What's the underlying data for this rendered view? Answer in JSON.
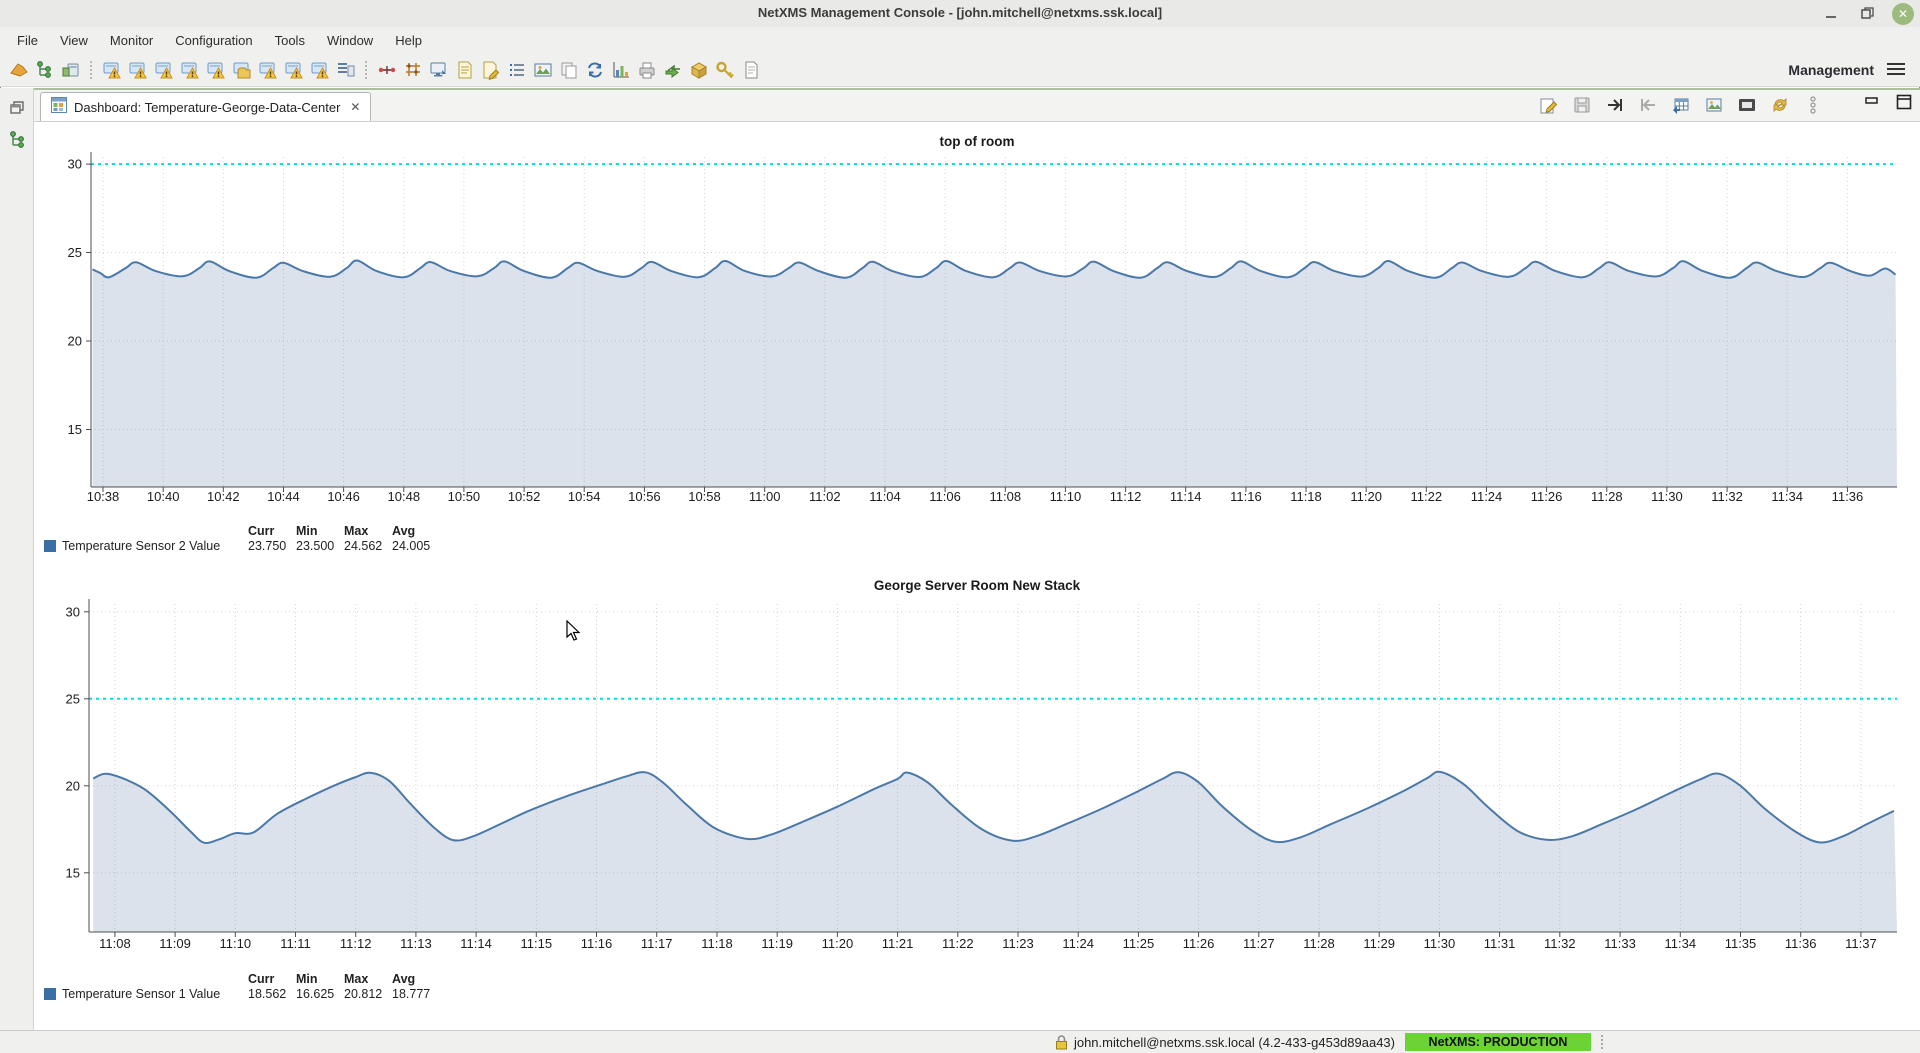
{
  "window": {
    "title": "NetXMS Management Console - [john.mitchell@netxms.ssk.local]",
    "controls": [
      "minimize",
      "restore",
      "close"
    ]
  },
  "menu": {
    "items": [
      "File",
      "View",
      "Monitor",
      "Configuration",
      "Tools",
      "Window",
      "Help"
    ]
  },
  "toolbar": {
    "management_label": "Management",
    "groups": [
      [
        "netxms-logo",
        "object-tree",
        "open-console"
      ],
      [
        "alarm-console",
        "alarm-console",
        "alarm-console",
        "alarm-console",
        "alarm-console",
        "alarm-folder",
        "alarm-console",
        "alarm-console",
        "alarm-console",
        "report"
      ],
      [
        "link-nodes",
        "network-grid",
        "monitor-export",
        "script",
        "script-edit",
        "event-list",
        "image-library",
        "copy",
        "sync",
        "graph",
        "printer",
        "package-deploy",
        "package",
        "key",
        "document"
      ]
    ]
  },
  "leftstrip": {
    "icons": [
      "restore-windows",
      "nav-tree"
    ]
  },
  "tab": {
    "icon": "dashboard",
    "label": "Dashboard: Temperature-George-Data-Center",
    "close": "✕"
  },
  "view_toolbar": {
    "icons": [
      "edit",
      "save",
      "pin-right",
      "pin-left",
      "export-table",
      "screenshot",
      "fullscreen",
      "refresh",
      "handle-dots"
    ],
    "window_icons": [
      "minimize-view",
      "maximize-view"
    ]
  },
  "status_bar": {
    "user": "john.mitchell@netxms.ssk.local (4.2-433-g453d89aa43)",
    "server_badge": "NetXMS: PRODUCTION",
    "badge_color": "#6bd335"
  },
  "chart_data": [
    {
      "type": "area",
      "title": "top of room",
      "xlabel": "",
      "ylabel": "",
      "grid": true,
      "legend_position": "bottom-left",
      "ylim": [
        11.75,
        30.4
      ],
      "y_ticks": [
        15,
        20,
        25,
        30
      ],
      "xlim": [
        -0.4,
        59.65
      ],
      "x_tick_minutes": [
        0,
        2,
        4,
        6,
        8,
        10,
        12,
        14,
        16,
        18,
        20,
        22,
        24,
        26,
        28,
        30,
        32,
        34,
        36,
        38,
        40,
        42,
        44,
        46,
        48,
        50,
        52,
        54,
        56,
        58
      ],
      "x_tick_labels": [
        "10:38",
        "10:40",
        "10:42",
        "10:44",
        "10:46",
        "10:48",
        "10:50",
        "10:52",
        "10:54",
        "10:56",
        "10:58",
        "11:00",
        "11:02",
        "11:04",
        "11:06",
        "11:08",
        "11:10",
        "11:12",
        "11:14",
        "11:16",
        "11:18",
        "11:20",
        "11:22",
        "11:24",
        "11:26",
        "11:28",
        "11:30",
        "11:32",
        "11:34",
        "11:36"
      ],
      "threshold": {
        "value": 30,
        "color": "#00dde2"
      },
      "series": [
        {
          "name": "Temperature Sensor 2 Value",
          "color": "#4a78a8",
          "fill": "rgba(92,124,168,0.22)",
          "points": [
            [
              -0.35,
              24.05
            ],
            [
              -0.1,
              23.85
            ],
            [
              0.2,
              23.6
            ],
            [
              0.75,
              24.12
            ],
            [
              1.1,
              24.45
            ],
            [
              1.75,
              23.95
            ],
            [
              2.65,
              23.66
            ],
            [
              3.2,
              24.12
            ],
            [
              3.55,
              24.5
            ],
            [
              4.2,
              23.95
            ],
            [
              5.1,
              23.58
            ],
            [
              5.65,
              24.12
            ],
            [
              6.0,
              24.42
            ],
            [
              6.65,
              23.95
            ],
            [
              7.55,
              23.63
            ],
            [
              8.1,
              24.12
            ],
            [
              8.45,
              24.55
            ],
            [
              9.1,
              23.95
            ],
            [
              10.0,
              23.6
            ],
            [
              10.55,
              24.12
            ],
            [
              10.9,
              24.46
            ],
            [
              11.55,
              23.95
            ],
            [
              12.45,
              23.66
            ],
            [
              13.0,
              24.12
            ],
            [
              13.35,
              24.5
            ],
            [
              14.0,
              23.95
            ],
            [
              14.9,
              23.58
            ],
            [
              15.45,
              24.12
            ],
            [
              15.8,
              24.42
            ],
            [
              16.45,
              23.95
            ],
            [
              17.35,
              23.63
            ],
            [
              17.9,
              24.12
            ],
            [
              18.25,
              24.47
            ],
            [
              18.9,
              23.95
            ],
            [
              19.8,
              23.6
            ],
            [
              20.35,
              24.12
            ],
            [
              20.7,
              24.52
            ],
            [
              21.35,
              23.95
            ],
            [
              22.25,
              23.65
            ],
            [
              22.8,
              24.12
            ],
            [
              23.15,
              24.44
            ],
            [
              23.8,
              23.95
            ],
            [
              24.7,
              23.58
            ],
            [
              25.25,
              24.12
            ],
            [
              25.6,
              24.48
            ],
            [
              26.25,
              23.95
            ],
            [
              27.15,
              23.62
            ],
            [
              27.7,
              24.12
            ],
            [
              28.05,
              24.52
            ],
            [
              28.7,
              23.95
            ],
            [
              29.6,
              23.6
            ],
            [
              30.15,
              24.12
            ],
            [
              30.5,
              24.44
            ],
            [
              31.15,
              23.95
            ],
            [
              32.05,
              23.65
            ],
            [
              32.6,
              24.12
            ],
            [
              32.95,
              24.49
            ],
            [
              33.6,
              23.95
            ],
            [
              34.5,
              23.58
            ],
            [
              35.05,
              24.12
            ],
            [
              35.4,
              24.45
            ],
            [
              36.05,
              23.95
            ],
            [
              36.95,
              23.62
            ],
            [
              37.5,
              24.12
            ],
            [
              37.85,
              24.5
            ],
            [
              38.5,
              23.95
            ],
            [
              39.4,
              23.6
            ],
            [
              39.95,
              24.12
            ],
            [
              40.3,
              24.46
            ],
            [
              40.95,
              23.95
            ],
            [
              41.85,
              23.64
            ],
            [
              42.4,
              24.12
            ],
            [
              42.75,
              24.52
            ],
            [
              43.4,
              23.95
            ],
            [
              44.3,
              23.58
            ],
            [
              44.85,
              24.12
            ],
            [
              45.2,
              24.44
            ],
            [
              45.85,
              23.95
            ],
            [
              46.75,
              23.63
            ],
            [
              47.3,
              24.12
            ],
            [
              47.65,
              24.48
            ],
            [
              48.3,
              23.95
            ],
            [
              49.2,
              23.6
            ],
            [
              49.75,
              24.12
            ],
            [
              50.1,
              24.45
            ],
            [
              50.75,
              23.95
            ],
            [
              51.65,
              23.65
            ],
            [
              52.2,
              24.12
            ],
            [
              52.55,
              24.51
            ],
            [
              53.2,
              23.95
            ],
            [
              54.1,
              23.58
            ],
            [
              54.65,
              24.12
            ],
            [
              55.0,
              24.44
            ],
            [
              55.65,
              23.95
            ],
            [
              56.55,
              23.62
            ],
            [
              57.1,
              24.12
            ],
            [
              57.45,
              24.42
            ],
            [
              58.1,
              23.95
            ],
            [
              58.75,
              23.7
            ],
            [
              59.25,
              24.1
            ],
            [
              59.6,
              23.75
            ]
          ]
        }
      ],
      "legend": {
        "headers": [
          "Curr",
          "Min",
          "Max",
          "Avg"
        ],
        "rows": [
          {
            "label": "Temperature Sensor 2 Value",
            "color": "#3a6ea5",
            "curr": "23.750",
            "min": "23.500",
            "max": "24.562",
            "avg": "24.005"
          }
        ]
      }
    },
    {
      "type": "area",
      "title": "George Server Room New Stack",
      "xlabel": "",
      "ylabel": "",
      "grid": true,
      "legend_position": "bottom-left",
      "ylim": [
        11.6,
        30.45
      ],
      "y_ticks": [
        15,
        20,
        25,
        30
      ],
      "xlim": [
        -0.43,
        29.6
      ],
      "x_tick_minutes": [
        0,
        1,
        2,
        3,
        4,
        5,
        6,
        7,
        8,
        9,
        10,
        11,
        12,
        13,
        14,
        15,
        16,
        17,
        18,
        19,
        20,
        21,
        22,
        23,
        24,
        25,
        26,
        27,
        28,
        29
      ],
      "x_tick_labels": [
        "11:08",
        "11:09",
        "11:10",
        "11:11",
        "11:12",
        "11:13",
        "11:14",
        "11:15",
        "11:16",
        "11:17",
        "11:18",
        "11:19",
        "11:20",
        "11:21",
        "11:22",
        "11:23",
        "11:24",
        "11:25",
        "11:26",
        "11:27",
        "11:28",
        "11:29",
        "11:30",
        "11:31",
        "11:32",
        "11:33",
        "11:34",
        "11:35",
        "11:36",
        "11:37"
      ],
      "threshold": {
        "value": 25,
        "color": "#00dde2"
      },
      "series": [
        {
          "name": "Temperature Sensor 1 Value",
          "color": "#4a78a8",
          "fill": "rgba(92,124,168,0.22)",
          "points": [
            [
              -0.36,
              20.42
            ],
            [
              -0.1,
              20.68
            ],
            [
              0.45,
              19.9
            ],
            [
              0.9,
              18.6
            ],
            [
              1.25,
              17.4
            ],
            [
              1.48,
              16.73
            ],
            [
              1.75,
              16.95
            ],
            [
              2.0,
              17.28
            ],
            [
              2.3,
              17.32
            ],
            [
              2.7,
              18.4
            ],
            [
              3.2,
              19.3
            ],
            [
              3.7,
              20.1
            ],
            [
              4.0,
              20.5
            ],
            [
              4.24,
              20.75
            ],
            [
              4.55,
              20.3
            ],
            [
              4.9,
              19.0
            ],
            [
              5.3,
              17.6
            ],
            [
              5.62,
              16.88
            ],
            [
              5.95,
              17.1
            ],
            [
              6.4,
              17.8
            ],
            [
              6.9,
              18.6
            ],
            [
              7.5,
              19.4
            ],
            [
              8.1,
              20.1
            ],
            [
              8.5,
              20.55
            ],
            [
              8.81,
              20.78
            ],
            [
              9.1,
              20.2
            ],
            [
              9.5,
              18.9
            ],
            [
              9.95,
              17.6
            ],
            [
              10.5,
              16.95
            ],
            [
              10.9,
              17.2
            ],
            [
              11.4,
              17.9
            ],
            [
              12.0,
              18.8
            ],
            [
              12.6,
              19.8
            ],
            [
              13.0,
              20.4
            ],
            [
              13.16,
              20.76
            ],
            [
              13.5,
              20.2
            ],
            [
              13.9,
              18.9
            ],
            [
              14.4,
              17.5
            ],
            [
              14.9,
              16.85
            ],
            [
              15.3,
              17.1
            ],
            [
              15.8,
              17.8
            ],
            [
              16.4,
              18.7
            ],
            [
              17.0,
              19.7
            ],
            [
              17.4,
              20.4
            ],
            [
              17.67,
              20.78
            ],
            [
              18.0,
              20.2
            ],
            [
              18.4,
              18.8
            ],
            [
              18.9,
              17.4
            ],
            [
              19.29,
              16.78
            ],
            [
              19.7,
              17.05
            ],
            [
              20.2,
              17.8
            ],
            [
              20.8,
              18.7
            ],
            [
              21.4,
              19.7
            ],
            [
              21.8,
              20.45
            ],
            [
              22.01,
              20.8
            ],
            [
              22.4,
              20.1
            ],
            [
              22.8,
              18.8
            ],
            [
              23.3,
              17.4
            ],
            [
              23.78,
              16.9
            ],
            [
              24.2,
              17.1
            ],
            [
              24.7,
              17.8
            ],
            [
              25.3,
              18.7
            ],
            [
              25.9,
              19.7
            ],
            [
              26.35,
              20.4
            ],
            [
              26.64,
              20.7
            ],
            [
              27.0,
              20.0
            ],
            [
              27.4,
              18.7
            ],
            [
              27.9,
              17.4
            ],
            [
              28.31,
              16.75
            ],
            [
              28.7,
              17.1
            ],
            [
              29.1,
              17.8
            ],
            [
              29.55,
              18.56
            ]
          ]
        }
      ],
      "legend": {
        "headers": [
          "Curr",
          "Min",
          "Max",
          "Avg"
        ],
        "rows": [
          {
            "label": "Temperature Sensor 1 Value",
            "color": "#3a6ea5",
            "curr": "18.562",
            "min": "16.625",
            "max": "20.812",
            "avg": "18.777"
          }
        ]
      }
    }
  ]
}
